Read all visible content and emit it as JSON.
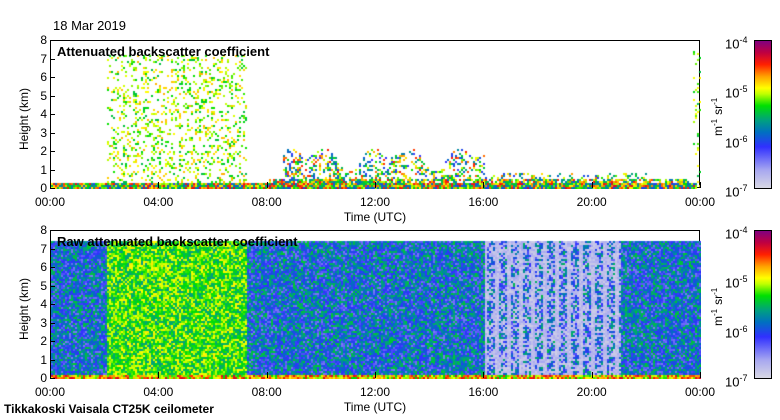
{
  "date": "18 Mar 2019",
  "footer": "Tikkakoski Vaisala CT25K ceilometer",
  "colors": {
    "lowest": "#d8d8e4",
    "blue": "#3030ff",
    "green": "#00e000",
    "yellow": "#ffff00",
    "red": "#ff2000",
    "highest": "#800080"
  },
  "chart_data": [
    {
      "type": "heatmap",
      "title": "Attenuated backscatter coefficient",
      "xlabel": "Time (UTC)",
      "ylabel": "Height (km)",
      "xticks": [
        "00:00",
        "04:00",
        "08:00",
        "12:00",
        "16:00",
        "20:00",
        "00:00"
      ],
      "yticks": [
        "0",
        "1",
        "2",
        "3",
        "4",
        "5",
        "6",
        "7",
        "8"
      ],
      "xlim_hours": [
        0,
        24
      ],
      "ylim_km": [
        0,
        8
      ],
      "colorbar": {
        "unit_base": "m",
        "unit_exp1": "-1",
        "unit_sr": "sr",
        "unit_exp2": "-1",
        "labels": [
          {
            "base": "10",
            "exp": "-4"
          },
          {
            "base": "10",
            "exp": "-5"
          },
          {
            "base": "10",
            "exp": "-6"
          },
          {
            "base": "10",
            "exp": "-7"
          }
        ],
        "range": [
          1e-07,
          0.0001
        ],
        "scale": "log"
      }
    },
    {
      "type": "heatmap",
      "title": "Raw attenuated backscatter coefficient",
      "xlabel": "Time (UTC)",
      "ylabel": "Height (km)",
      "xticks": [
        "00:00",
        "04:00",
        "08:00",
        "12:00",
        "16:00",
        "20:00",
        "00:00"
      ],
      "yticks": [
        "0",
        "1",
        "2",
        "3",
        "4",
        "5",
        "6",
        "7",
        "8"
      ],
      "xlim_hours": [
        0,
        24
      ],
      "ylim_km": [
        0,
        8
      ],
      "colorbar": {
        "unit_base": "m",
        "unit_exp1": "-1",
        "unit_sr": "sr",
        "unit_exp2": "-1",
        "labels": [
          {
            "base": "10",
            "exp": "-4"
          },
          {
            "base": "10",
            "exp": "-5"
          },
          {
            "base": "10",
            "exp": "-6"
          },
          {
            "base": "10",
            "exp": "-7"
          }
        ],
        "range": [
          1e-07,
          0.0001
        ],
        "scale": "log"
      }
    }
  ]
}
